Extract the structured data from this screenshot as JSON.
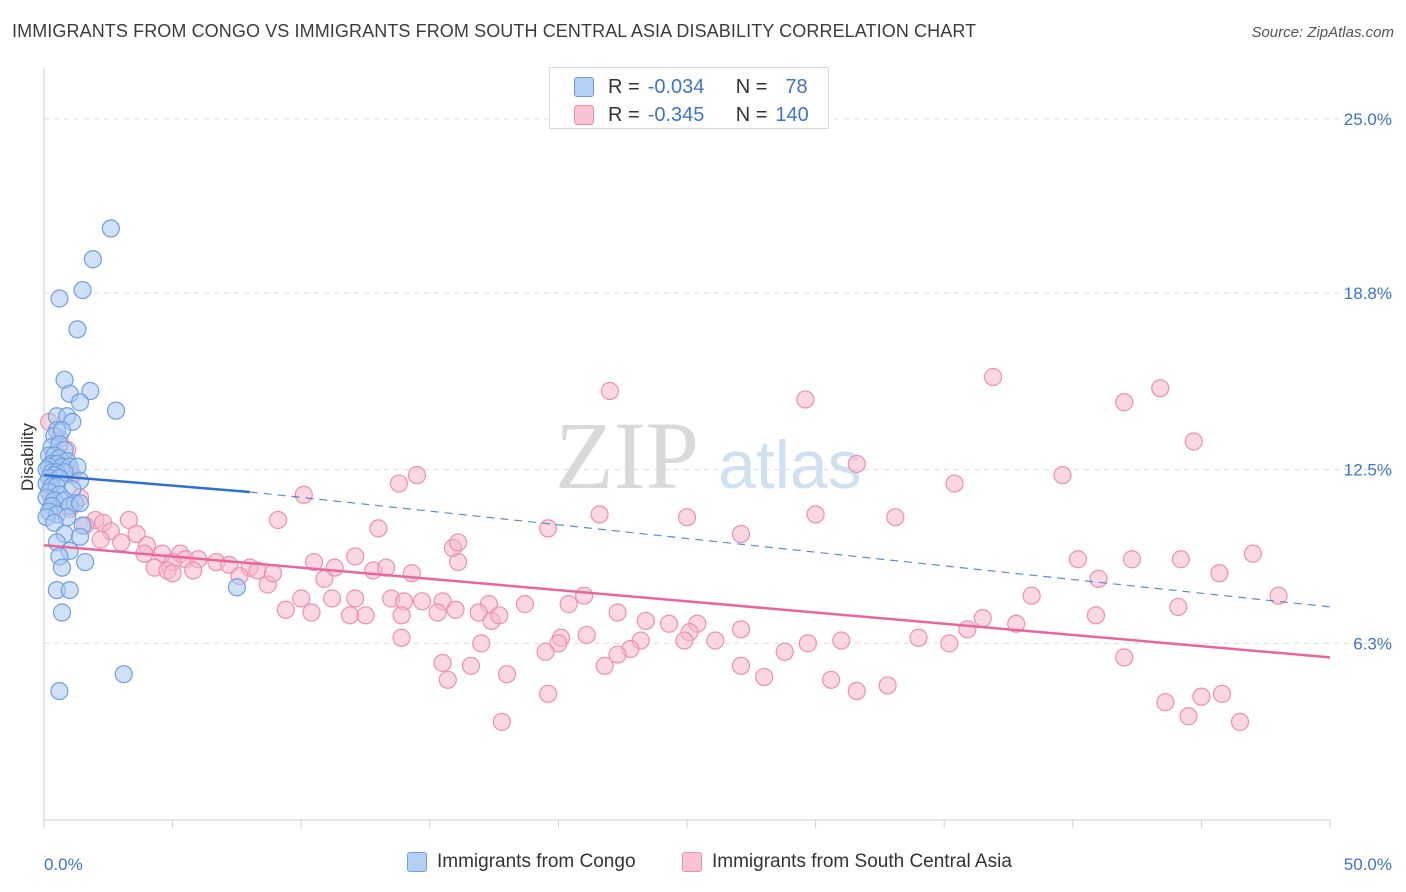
{
  "title": "IMMIGRANTS FROM CONGO VS IMMIGRANTS FROM SOUTH CENTRAL ASIA DISABILITY CORRELATION CHART",
  "source": "Source: ZipAtlas.com",
  "watermark": {
    "zip": "ZIP",
    "atlas": "atlas"
  },
  "colors": {
    "congo_fill": "#a9c8f0",
    "congo_stroke": "#6f9fe0",
    "congo_line": "#2f6fd0",
    "asia_fill": "#f6b6cb",
    "asia_stroke": "#ee8fb0",
    "asia_line": "#e8679a",
    "axis_text": "#3e74c9"
  },
  "stats": [
    {
      "r_label": "R =",
      "r_value": "-0.034",
      "n_label": "N =",
      "n_value": "78"
    },
    {
      "r_label": "R =",
      "r_value": "-0.345",
      "n_label": "N =",
      "n_value": "140"
    }
  ],
  "legend": [
    "Immigrants from Congo",
    "Immigrants from South Central Asia"
  ],
  "chart_data": {
    "type": "scatter",
    "title": "IMMIGRANTS FROM CONGO VS IMMIGRANTS FROM SOUTH CENTRAL ASIA DISABILITY CORRELATION CHART",
    "xlabel": "",
    "ylabel": "Disability",
    "xlim": [
      0,
      50
    ],
    "ylim": [
      0,
      26.5
    ],
    "x_tick_labels": [
      "0.0%",
      "50.0%"
    ],
    "y_ticks": [
      6.3,
      12.5,
      18.8,
      25.0
    ],
    "y_tick_labels": [
      "6.3%",
      "12.5%",
      "18.8%",
      "25.0%"
    ],
    "grid": "horizontal dashed",
    "legend_position": "bottom",
    "series": [
      {
        "name": "Immigrants from Congo",
        "R": -0.034,
        "N": 78,
        "trend": {
          "x": [
            0,
            8
          ],
          "y": [
            12.3,
            11.7
          ],
          "dashed_to": [
            50,
            7.6
          ]
        },
        "points": [
          [
            2.6,
            21.1
          ],
          [
            1.9,
            20.0
          ],
          [
            1.5,
            18.9
          ],
          [
            0.6,
            18.6
          ],
          [
            1.3,
            17.5
          ],
          [
            0.8,
            15.7
          ],
          [
            1.8,
            15.3
          ],
          [
            1.0,
            15.2
          ],
          [
            1.4,
            14.9
          ],
          [
            2.8,
            14.6
          ],
          [
            0.5,
            14.4
          ],
          [
            0.9,
            14.4
          ],
          [
            1.1,
            14.2
          ],
          [
            0.5,
            13.9
          ],
          [
            0.4,
            13.7
          ],
          [
            0.7,
            13.9
          ],
          [
            0.3,
            13.3
          ],
          [
            0.6,
            13.4
          ],
          [
            0.8,
            13.2
          ],
          [
            0.2,
            13.0
          ],
          [
            0.4,
            13.0
          ],
          [
            0.6,
            12.9
          ],
          [
            0.9,
            12.8
          ],
          [
            0.3,
            12.7
          ],
          [
            0.5,
            12.7
          ],
          [
            0.2,
            12.6
          ],
          [
            0.7,
            12.6
          ],
          [
            1.0,
            12.6
          ],
          [
            1.3,
            12.6
          ],
          [
            0.1,
            12.5
          ],
          [
            0.3,
            12.4
          ],
          [
            0.5,
            12.4
          ],
          [
            0.8,
            12.4
          ],
          [
            0.4,
            12.3
          ],
          [
            0.2,
            12.2
          ],
          [
            0.6,
            12.2
          ],
          [
            1.4,
            12.1
          ],
          [
            0.1,
            12.0
          ],
          [
            0.3,
            11.9
          ],
          [
            0.5,
            11.9
          ],
          [
            1.1,
            11.8
          ],
          [
            0.2,
            11.7
          ],
          [
            0.6,
            11.6
          ],
          [
            0.1,
            11.5
          ],
          [
            0.4,
            11.4
          ],
          [
            0.8,
            11.4
          ],
          [
            1.2,
            11.3
          ],
          [
            0.3,
            11.2
          ],
          [
            1.0,
            11.2
          ],
          [
            1.4,
            11.3
          ],
          [
            0.2,
            11.0
          ],
          [
            0.5,
            10.9
          ],
          [
            0.1,
            10.8
          ],
          [
            0.9,
            10.8
          ],
          [
            0.4,
            10.6
          ],
          [
            1.5,
            10.5
          ],
          [
            0.8,
            10.2
          ],
          [
            1.4,
            10.1
          ],
          [
            0.5,
            9.9
          ],
          [
            1.0,
            9.6
          ],
          [
            0.6,
            9.4
          ],
          [
            1.6,
            9.2
          ],
          [
            0.7,
            9.0
          ],
          [
            0.5,
            8.2
          ],
          [
            1.0,
            8.2
          ],
          [
            7.5,
            8.3
          ],
          [
            0.7,
            7.4
          ],
          [
            3.1,
            5.2
          ],
          [
            0.6,
            4.6
          ]
        ]
      },
      {
        "name": "Immigrants from South Central Asia",
        "R": -0.345,
        "N": 140,
        "trend": {
          "x": [
            0,
            50
          ],
          "y": [
            9.8,
            5.8
          ]
        },
        "points": [
          [
            0.2,
            14.2
          ],
          [
            0.6,
            13.6
          ],
          [
            0.9,
            13.2
          ],
          [
            0.4,
            12.8
          ],
          [
            0.8,
            12.5
          ],
          [
            1.1,
            12.3
          ],
          [
            0.3,
            11.5
          ],
          [
            1.4,
            11.5
          ],
          [
            1.0,
            11.1
          ],
          [
            2.0,
            10.7
          ],
          [
            2.3,
            10.6
          ],
          [
            3.3,
            10.7
          ],
          [
            1.6,
            10.5
          ],
          [
            2.6,
            10.3
          ],
          [
            3.6,
            10.2
          ],
          [
            2.2,
            10.0
          ],
          [
            3.0,
            9.9
          ],
          [
            4.0,
            9.8
          ],
          [
            3.9,
            9.5
          ],
          [
            4.6,
            9.5
          ],
          [
            5.3,
            9.5
          ],
          [
            5.5,
            9.3
          ],
          [
            5.0,
            9.2
          ],
          [
            6.0,
            9.3
          ],
          [
            4.3,
            9.0
          ],
          [
            4.8,
            8.9
          ],
          [
            5.8,
            8.9
          ],
          [
            6.7,
            9.2
          ],
          [
            7.2,
            9.1
          ],
          [
            8.0,
            9.0
          ],
          [
            8.3,
            8.9
          ],
          [
            7.6,
            8.7
          ],
          [
            5.0,
            8.8
          ],
          [
            8.7,
            8.4
          ],
          [
            10.5,
            9.2
          ],
          [
            11.3,
            9.0
          ],
          [
            10.9,
            8.6
          ],
          [
            12.1,
            9.4
          ],
          [
            12.8,
            8.9
          ],
          [
            13.3,
            9.0
          ],
          [
            14.3,
            8.8
          ],
          [
            15.9,
            9.7
          ],
          [
            16.1,
            9.2
          ],
          [
            10.0,
            7.9
          ],
          [
            11.2,
            7.9
          ],
          [
            12.1,
            7.9
          ],
          [
            13.5,
            7.9
          ],
          [
            14.0,
            7.8
          ],
          [
            14.7,
            7.8
          ],
          [
            15.5,
            7.8
          ],
          [
            16.0,
            7.5
          ],
          [
            17.3,
            7.7
          ],
          [
            9.4,
            7.5
          ],
          [
            10.4,
            7.4
          ],
          [
            11.9,
            7.3
          ],
          [
            12.5,
            7.3
          ],
          [
            13.9,
            7.3
          ],
          [
            15.3,
            7.4
          ],
          [
            16.9,
            7.4
          ],
          [
            17.4,
            7.1
          ],
          [
            17.7,
            7.3
          ],
          [
            18.7,
            7.7
          ],
          [
            20.4,
            7.7
          ],
          [
            21.0,
            8.0
          ],
          [
            22.3,
            7.4
          ],
          [
            23.4,
            7.1
          ],
          [
            24.3,
            7.0
          ],
          [
            25.4,
            7.0
          ],
          [
            25.1,
            6.7
          ],
          [
            24.9,
            6.4
          ],
          [
            23.2,
            6.4
          ],
          [
            22.8,
            6.1
          ],
          [
            21.1,
            6.6
          ],
          [
            20.1,
            6.5
          ],
          [
            22.3,
            5.9
          ],
          [
            21.8,
            5.5
          ],
          [
            20.0,
            6.3
          ],
          [
            19.5,
            6.0
          ],
          [
            17.0,
            6.3
          ],
          [
            15.5,
            5.6
          ],
          [
            13.9,
            6.5
          ],
          [
            16.6,
            5.5
          ],
          [
            18.0,
            5.2
          ],
          [
            19.6,
            4.5
          ],
          [
            17.8,
            3.5
          ],
          [
            15.7,
            5.0
          ],
          [
            26.1,
            6.4
          ],
          [
            27.1,
            6.8
          ],
          [
            27.1,
            5.5
          ],
          [
            28.8,
            6.0
          ],
          [
            28.0,
            5.1
          ],
          [
            29.7,
            6.3
          ],
          [
            30.6,
            5.0
          ],
          [
            31.0,
            6.4
          ],
          [
            31.6,
            4.6
          ],
          [
            32.8,
            4.8
          ],
          [
            34.0,
            6.5
          ],
          [
            35.2,
            6.3
          ],
          [
            35.9,
            6.8
          ],
          [
            36.5,
            7.2
          ],
          [
            37.8,
            7.0
          ],
          [
            38.4,
            8.0
          ],
          [
            40.9,
            7.3
          ],
          [
            41.0,
            8.6
          ],
          [
            40.2,
            9.3
          ],
          [
            42.0,
            5.8
          ],
          [
            42.3,
            9.3
          ],
          [
            43.6,
            4.2
          ],
          [
            44.5,
            3.7
          ],
          [
            45.0,
            4.4
          ],
          [
            45.8,
            4.5
          ],
          [
            46.5,
            3.5
          ],
          [
            48.0,
            8.0
          ],
          [
            47.0,
            9.5
          ],
          [
            45.7,
            8.8
          ],
          [
            44.2,
            9.3
          ],
          [
            44.1,
            7.6
          ],
          [
            25.0,
            10.8
          ],
          [
            27.1,
            10.2
          ],
          [
            30.0,
            10.9
          ],
          [
            33.1,
            10.8
          ],
          [
            31.6,
            12.7
          ],
          [
            35.4,
            12.0
          ],
          [
            39.6,
            12.3
          ],
          [
            42.0,
            14.9
          ],
          [
            44.7,
            13.5
          ],
          [
            43.4,
            15.4
          ],
          [
            36.9,
            15.8
          ],
          [
            29.6,
            15.0
          ],
          [
            22.0,
            15.3
          ],
          [
            21.6,
            10.9
          ],
          [
            19.6,
            10.4
          ],
          [
            16.1,
            9.9
          ],
          [
            13.8,
            12.0
          ],
          [
            14.5,
            12.3
          ],
          [
            13.0,
            10.4
          ],
          [
            10.1,
            11.6
          ],
          [
            9.1,
            10.7
          ],
          [
            8.9,
            8.8
          ]
        ]
      }
    ]
  }
}
